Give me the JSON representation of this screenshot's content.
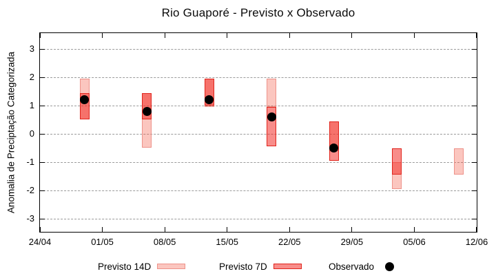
{
  "figure": {
    "title": "Rio Guaporé - Previsto x Observado"
  },
  "chart_data": {
    "type": "range-bar",
    "title": "Rio Guaporé - Previsto x Observado",
    "xlabel": "",
    "ylabel": "Anomalia de Preciptação Categorizada",
    "ylim": [
      -3.5,
      3.6
    ],
    "yticks": [
      3,
      2,
      1,
      0,
      -1,
      -2,
      -3
    ],
    "grid": "horizontal-dashed",
    "legend_position": "bottom-outside",
    "x_span_days": 49,
    "xticks": [
      {
        "label": "24/04",
        "day": 0
      },
      {
        "label": "01/05",
        "day": 7
      },
      {
        "label": "08/05",
        "day": 14
      },
      {
        "label": "15/05",
        "day": 21
      },
      {
        "label": "22/05",
        "day": 28
      },
      {
        "label": "29/05",
        "day": 35
      },
      {
        "label": "05/06",
        "day": 42
      },
      {
        "label": "12/06",
        "day": 49
      }
    ],
    "series": [
      {
        "name": "Previsto 14D",
        "type": "range-bar",
        "fill": "rgba(243,77,55,0.32)",
        "border": "#ee9189"
      },
      {
        "name": "Previsto 7D",
        "type": "range-bar",
        "fill": "rgba(242,37,30,0.52)",
        "border": "#e0231b"
      },
      {
        "name": "Observado",
        "type": "point",
        "color": "#000000"
      }
    ],
    "groups": [
      {
        "date": "29/04",
        "day": 5,
        "previsto_14d": [
          0.5,
          1.95
        ],
        "previsto_7d": [
          0.5,
          1.45
        ],
        "observado": 1.2
      },
      {
        "date": "06/05",
        "day": 12,
        "previsto_14d": [
          -0.5,
          1.45
        ],
        "previsto_7d": [
          0.5,
          1.45
        ],
        "observado": 0.8
      },
      {
        "date": "13/05",
        "day": 19,
        "previsto_14d": [
          0.95,
          1.95
        ],
        "previsto_7d": [
          1.0,
          1.95
        ],
        "observado": 1.2
      },
      {
        "date": "20/05",
        "day": 26,
        "previsto_14d": [
          0.95,
          1.95
        ],
        "previsto_7d": [
          -0.45,
          0.95
        ],
        "observado": 0.6
      },
      {
        "date": "27/05",
        "day": 33,
        "previsto_14d": [
          -0.6,
          0.45
        ],
        "previsto_7d": [
          -0.95,
          0.45
        ],
        "observado": -0.5
      },
      {
        "date": "03/06",
        "day": 40,
        "previsto_14d": [
          -1.95,
          -1.0
        ],
        "previsto_7d": [
          -1.45,
          -0.5
        ],
        "observado": null
      },
      {
        "date": "10/06",
        "day": 47,
        "previsto_14d": [
          -1.45,
          -0.5
        ],
        "previsto_7d": null,
        "observado": null
      }
    ]
  },
  "legend": {
    "items": [
      {
        "label": "Previsto 14D",
        "swatch": "light-pink-bar"
      },
      {
        "label": "Previsto 7D",
        "swatch": "red-bar"
      },
      {
        "label": "Observado",
        "swatch": "black-dot"
      }
    ]
  }
}
